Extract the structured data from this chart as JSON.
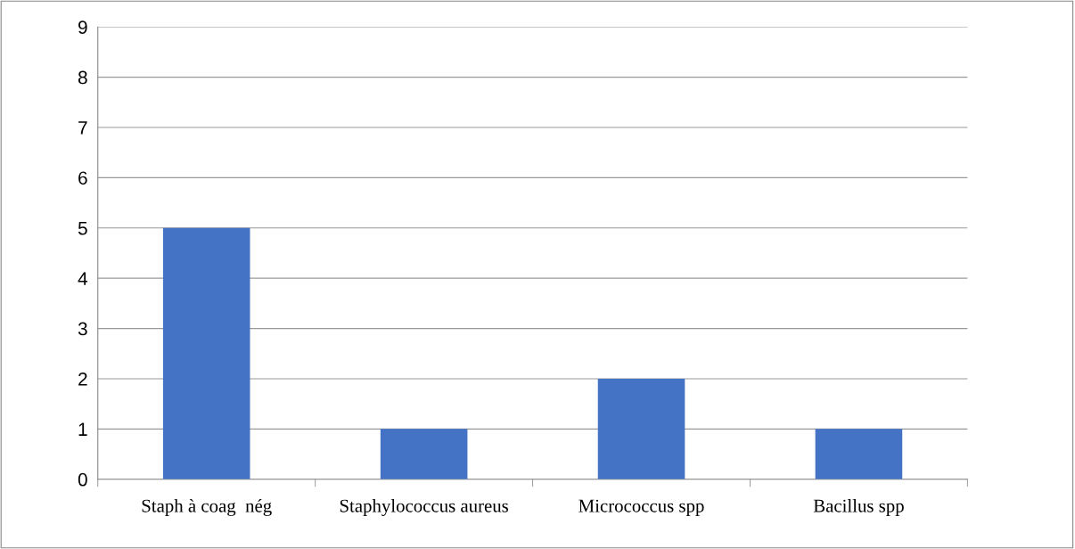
{
  "chart_data": {
    "type": "bar",
    "categories": [
      "Staph à coag  nég",
      "Staphylococcus aureus",
      "Micrococcus spp",
      "Bacillus spp"
    ],
    "values": [
      5,
      1,
      2,
      1
    ],
    "color": "#4472c4",
    "ylim": [
      0,
      9
    ],
    "yticks": [
      0,
      1,
      2,
      3,
      4,
      5,
      6,
      7,
      8,
      9
    ],
    "grid": "y",
    "legend": false
  }
}
